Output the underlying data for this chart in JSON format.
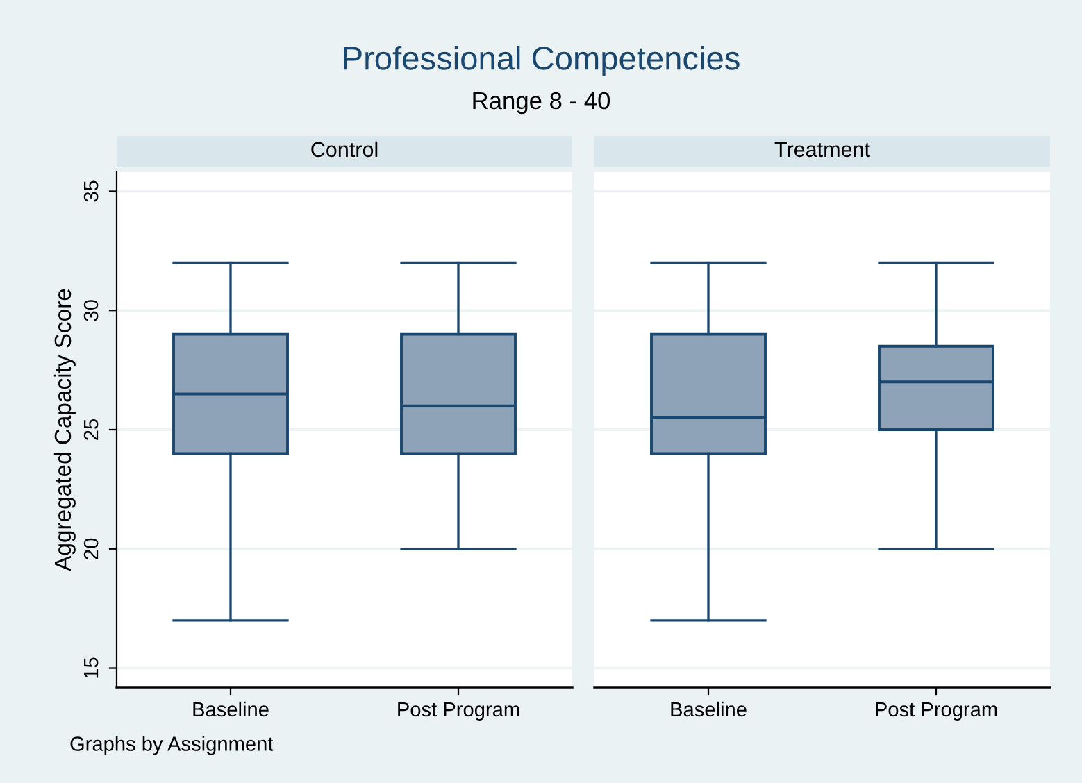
{
  "chart_data": [
    {
      "type": "other",
      "title": "Professional Competencies",
      "subtitle": "Range 8 - 40",
      "annotations": [
        "Graphs by Assignment"
      ]
    },
    {
      "type": "box",
      "title": "Control",
      "ylabel": "Aggregated Capacity Score",
      "categories": [
        "Baseline",
        "Post Program"
      ],
      "color": "#8ea3b7",
      "ylim": [
        14.2,
        35.8
      ],
      "yticks": [
        15,
        20,
        25,
        30,
        35
      ],
      "grid": "y",
      "boxes": [
        {
          "low": 17,
          "q1": 24,
          "median": 26.5,
          "q3": 29,
          "high": 32
        },
        {
          "low": 20,
          "q1": 24,
          "median": 26,
          "q3": 29,
          "high": 32
        }
      ]
    },
    {
      "type": "box",
      "title": "Treatment",
      "categories": [
        "Baseline",
        "Post Program"
      ],
      "color": "#8ea3b7",
      "ylim": [
        14.2,
        35.8
      ],
      "yticks": [
        15,
        20,
        25,
        30,
        35
      ],
      "grid": "y",
      "tick_labels": "x",
      "boxes": [
        {
          "low": 17,
          "q1": 24,
          "median": 25.5,
          "q3": 29,
          "high": 32
        },
        {
          "low": 20,
          "q1": 25,
          "median": 27,
          "q3": 28.5,
          "high": 32
        }
      ]
    }
  ]
}
